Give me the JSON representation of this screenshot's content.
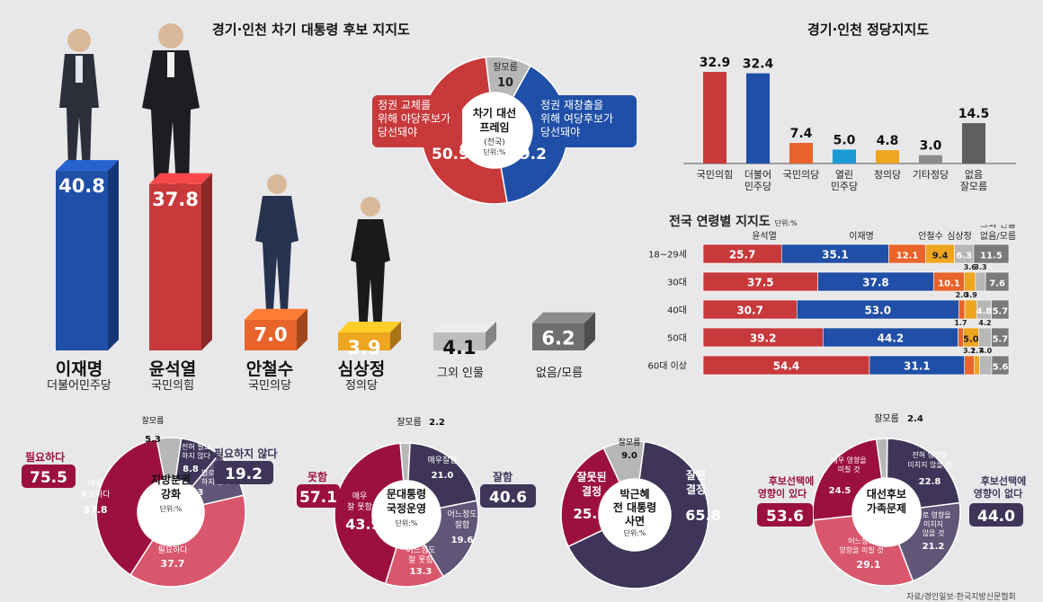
{
  "candidates": {
    "title": "경기·인천 차기 대통령 후보 지지도",
    "items": [
      {
        "name": "이재명",
        "party": "더불어민주당",
        "value": "40.8",
        "color": "#1f4fa6"
      },
      {
        "name": "윤석열",
        "party": "국민의힘",
        "value": "37.8",
        "color": "#c8393b"
      },
      {
        "name": "안철수",
        "party": "국민의당",
        "value": "7.0",
        "color": "#e8642a"
      },
      {
        "name": "심상정",
        "party": "정의당",
        "value": "3.9",
        "color": "#eea520"
      },
      {
        "name": "그외 인물",
        "party": "",
        "value": "4.1",
        "color": "#bdbdbd"
      },
      {
        "name": "없음/모름",
        "party": "",
        "value": "6.2",
        "color": "#6f6f6f"
      }
    ]
  },
  "election_frame": {
    "center_title": "차기 대선 프레임",
    "center_sub": "(전국)",
    "unit": "단위:%",
    "slices": [
      {
        "label": "정권 교체를 위해 야당후보가 당선돼야",
        "value": 50.9,
        "color": "#c8393b"
      },
      {
        "label": "정권 재창출을 위해 여당후보가 당선돼야",
        "value": 39.2,
        "color": "#1f4fa6"
      },
      {
        "label": "잘모름",
        "value": 10,
        "color": "#b7b7b7"
      }
    ],
    "labels": {
      "opposition_line1": "정권 교체를",
      "opposition_line2": "위해 야당후보가",
      "opposition_line3": "당선돼야",
      "opposition_value": "50.9",
      "ruling_line1": "정권 재창출을",
      "ruling_line2": "위해 여당후보가",
      "ruling_line3": "당선돼야",
      "ruling_value": "39.2",
      "unknown": "잘모름",
      "unknown_value": "10"
    }
  },
  "chart_data": [
    {
      "type": "bar",
      "title": "경기·인천 정당지지도",
      "categories": [
        "국민의힘",
        "더불어 민주당",
        "국민의당",
        "열린 민주당",
        "정의당",
        "기타정당",
        "없음 잘모름"
      ],
      "values": [
        32.9,
        32.4,
        7.4,
        5.0,
        4.8,
        3.0,
        14.5
      ],
      "colors": [
        "#c8393b",
        "#1f4fa6",
        "#e8642a",
        "#1c9ad6",
        "#eea520",
        "#8c8c8c",
        "#5f5f5f"
      ],
      "value_labels": [
        "32.9",
        "32.4",
        "7.4",
        "5.0",
        "4.8",
        "3.0",
        "14.5"
      ]
    },
    {
      "type": "bar",
      "title": "전국 연령별 지지도",
      "unit": "단위:%",
      "stacked": true,
      "orientation": "horizontal",
      "categories": [
        "18~29세",
        "30대",
        "40대",
        "50대",
        "60대 이상"
      ],
      "series": [
        {
          "name": "윤석열",
          "values": [
            25.7,
            37.5,
            30.7,
            39.2,
            54.4
          ],
          "color": "#c8393b"
        },
        {
          "name": "이재명",
          "values": [
            35.1,
            37.8,
            53.0,
            44.2,
            31.1
          ],
          "color": "#1f4fa6"
        },
        {
          "name": "안철수",
          "values": [
            12.1,
            10.1,
            2.0,
            1.7,
            3.2
          ],
          "color": "#e8642a"
        },
        {
          "name": "심상정",
          "values": [
            9.4,
            3.6,
            3.9,
            5.0,
            1.7
          ],
          "color": "#eea520"
        },
        {
          "name": "그외 인물",
          "values": [
            6.3,
            3.3,
            4.8,
            4.2,
            4.0
          ],
          "color": "#b7b7b7"
        },
        {
          "name": "없음/모름",
          "values": [
            11.5,
            7.6,
            5.7,
            5.7,
            5.6
          ],
          "color": "#7a7a7a"
        }
      ],
      "legend_extra": "그외 인물 없음/모름"
    },
    {
      "type": "pie",
      "title": "지방분권 강화",
      "unit": "단위:%",
      "slices": [
        {
          "label": "잘모름",
          "value": 5.3
        },
        {
          "label": "전혀 필요하지 않다",
          "value": 8.8
        },
        {
          "label": "별로 필요하지 않다",
          "value": 10.3
        },
        {
          "label": "어느정도 필요하다",
          "value": 37.7
        },
        {
          "label": "매우 필요하다",
          "value": 37.8
        }
      ],
      "summary": [
        {
          "label": "필요하다",
          "value": "75.5"
        },
        {
          "label": "필요하지 않다",
          "value": "19.2"
        }
      ]
    },
    {
      "type": "pie",
      "title": "문대통령 국정운영",
      "unit": "단위:%",
      "slices": [
        {
          "label": "잘모름",
          "value": 2.2
        },
        {
          "label": "매우잘함",
          "value": 21.0
        },
        {
          "label": "어느정도 잘함",
          "value": 19.6
        },
        {
          "label": "어느정도 잘 못함",
          "value": 13.3
        },
        {
          "label": "매우 잘 못함",
          "value": 43.9
        }
      ],
      "summary": [
        {
          "label": "못함",
          "value": "57.1"
        },
        {
          "label": "잘함",
          "value": "40.6"
        }
      ]
    },
    {
      "type": "pie",
      "title": "박근혜 전 대통령 사면",
      "unit": "단위:%",
      "slices": [
        {
          "label": "잘모름",
          "value": 9.0
        },
        {
          "label": "잘된 결정",
          "value": 65.8
        },
        {
          "label": "잘못된 결정",
          "value": 25.1
        }
      ]
    },
    {
      "type": "pie",
      "title": "대선후보 가족문제",
      "slices": [
        {
          "label": "잘모름",
          "value": 2.4
        },
        {
          "label": "전혀 영향을 미치지 않을 것",
          "value": 22.8
        },
        {
          "label": "별로 영향을 미치지 않을 것",
          "value": 21.2
        },
        {
          "label": "어느정도 영향을 미칠 것",
          "value": 29.1
        },
        {
          "label": "매우 영향을 미칠 것",
          "value": 24.5
        }
      ],
      "summary": [
        {
          "label": "후보선택에 영향이 있다",
          "value": "53.6"
        },
        {
          "label": "후보선택에 영향이 없다",
          "value": "44.0"
        }
      ]
    }
  ],
  "donut_labels": {
    "d1": {
      "c1": "지방분권",
      "c2": "강화",
      "unit": "단위:%",
      "s1": "잘모름",
      "v1": "5.3",
      "s2a": "전혀 필요",
      "s2b": "하지 않다",
      "v2": "8.8",
      "s3a": "별로 필요",
      "s3b": "하지 않다",
      "v3": "10.3",
      "s4a": "어느정도",
      "s4b": "필요하다",
      "v4": "37.7",
      "s5a": "매우",
      "s5b": "필요하다",
      "v5": "37.8",
      "sumL": "필요하다",
      "sumLv": "75.5",
      "sumR": "필요하지 않다",
      "sumRv": "19.2"
    },
    "d2": {
      "c1": "문대통령",
      "c2": "국정운영",
      "unit": "단위:%",
      "s1": "잘모름",
      "v1": "2.2",
      "s2": "매우잘함",
      "v2": "21.0",
      "s3a": "어느정도",
      "s3b": "잘함",
      "v3": "19.6",
      "s4a": "어느정도",
      "s4b": "잘 못함",
      "v4": "13.3",
      "s5a": "매우",
      "s5b": "잘 못함",
      "v5": "43.9",
      "sumL": "못함",
      "sumLv": "57.1",
      "sumR": "잘함",
      "sumRv": "40.6"
    },
    "d3": {
      "c1": "박근혜",
      "c2": "전 대통령",
      "c3": "사면",
      "unit": "단위:%",
      "s1": "잘모름",
      "v1": "9.0",
      "sumLa": "잘못된",
      "sumLb": "결정",
      "sumLv": "25.1",
      "sumRa": "잘된",
      "sumRb": "결정",
      "sumRv": "65.8"
    },
    "d4": {
      "c1": "대선후보",
      "c2": "가족문제",
      "s1": "잘모름",
      "v1": "2.4",
      "s2a": "전혀 영향을",
      "s2b": "미치지 않을 것",
      "v2": "22.8",
      "s3a": "별로 영향을",
      "s3b": "미치지",
      "s3c": "않을 것",
      "v3": "21.2",
      "s4a": "어느정도",
      "s4b": "영향을 미칠 것",
      "v4": "29.1",
      "s5a": "매우 영향을",
      "s5b": "미칠 것",
      "v5": "24.5",
      "sumLa": "후보선택에",
      "sumLb": "영향이 있다",
      "sumLv": "53.6",
      "sumRa": "후보선택에",
      "sumRb": "영향이 없다",
      "sumRv": "44.0"
    }
  },
  "source": "자료/경인일보·한국지방신문협회"
}
